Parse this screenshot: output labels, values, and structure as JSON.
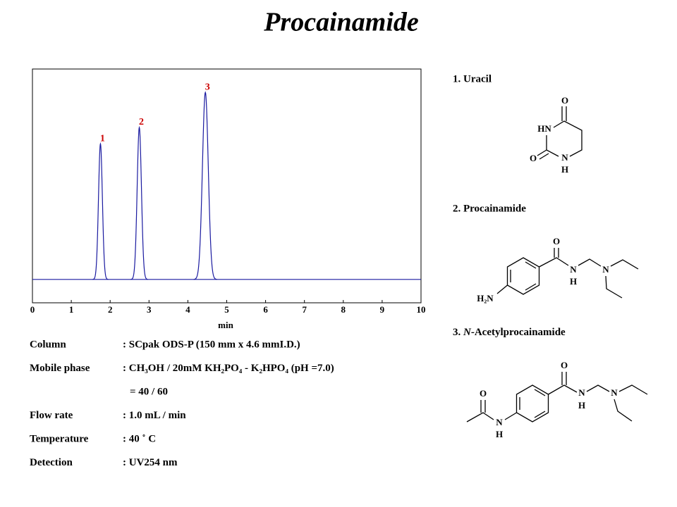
{
  "chart_data": {
    "type": "chromatogram",
    "title": "Procainamide",
    "x_label": "min",
    "xlim": [
      0,
      10
    ],
    "xticks": [
      0,
      1,
      2,
      3,
      4,
      5,
      6,
      7,
      8,
      9,
      10
    ],
    "ylim": [
      -10,
      90
    ],
    "color": "#1a1aa0",
    "label_color": "#cc0000",
    "peaks": {
      "labels": [
        "1",
        "2",
        "3"
      ],
      "x": [
        1.75,
        2.75,
        4.45
      ],
      "values": [
        58,
        65,
        80
      ],
      "widths": [
        0.05,
        0.055,
        0.075
      ]
    }
  },
  "compounds": [
    {
      "title": "1. Uracil",
      "atoms": [
        "O",
        "HN",
        "O",
        "N",
        "H"
      ]
    },
    {
      "title": "2. Procainamide",
      "atoms": [
        "O",
        "N",
        "H",
        "N",
        "H₂N"
      ]
    },
    {
      "title_prefix": "3. ",
      "title_italic": "N",
      "title_rest": "-Acetylprocainamide",
      "atoms": [
        "O",
        "N",
        "H",
        "N",
        "O",
        "N",
        "H"
      ]
    }
  ],
  "conditions": [
    {
      "label": "Column",
      "value": ": SCpak ODS-P  (150 mm x 4.6 mmI.D.)"
    },
    {
      "label": "Mobile phase",
      "value": ": CH₃OH / 20mM KH₂PO₄ - K₂HPO₄ (pH =7.0)",
      "value2": "= 40 / 60"
    },
    {
      "label": "Flow rate",
      "value": ": 1.0 mL / min"
    },
    {
      "label": "Temperature",
      "value": ": 40 ˚ C"
    },
    {
      "label": "Detection",
      "value": ": UV254 nm"
    }
  ]
}
